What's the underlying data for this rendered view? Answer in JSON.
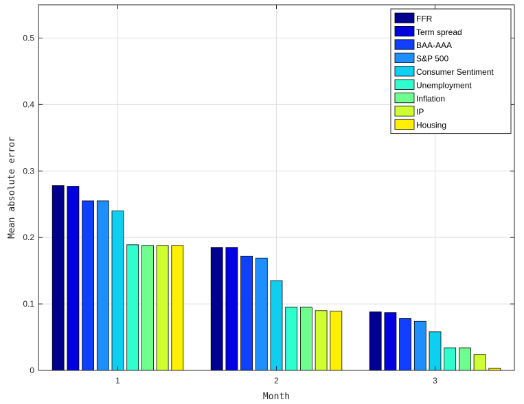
{
  "chart_data": {
    "type": "bar",
    "xlabel": "Month",
    "ylabel": "Mean absolute error",
    "categories": [
      "1",
      "2",
      "3"
    ],
    "ylim": [
      0,
      0.55
    ],
    "yticks": [
      0,
      0.1,
      0.2,
      0.3,
      0.4,
      0.5
    ],
    "ytick_labels": [
      "0",
      "0.1",
      "0.2",
      "0.3",
      "0.4",
      "0.5"
    ],
    "grid": true,
    "legend_position": "top-right",
    "series": [
      {
        "name": "FFR",
        "color": "#00008F",
        "values": [
          0.278,
          0.185,
          0.088
        ]
      },
      {
        "name": "Term spread",
        "color": "#0000DF",
        "values": [
          0.277,
          0.185,
          0.087
        ]
      },
      {
        "name": "BAA-AAA",
        "color": "#0F3FFF",
        "values": [
          0.255,
          0.172,
          0.078
        ]
      },
      {
        "name": "S&P 500",
        "color": "#1F8FFF",
        "values": [
          0.255,
          0.169,
          0.074
        ]
      },
      {
        "name": "Consumer Sentiment",
        "color": "#0FCFF0",
        "values": [
          0.24,
          0.135,
          0.058
        ]
      },
      {
        "name": "Unemployment",
        "color": "#2FFFCF",
        "values": [
          0.189,
          0.095,
          0.034
        ]
      },
      {
        "name": "Inflation",
        "color": "#6FFF8F",
        "values": [
          0.188,
          0.095,
          0.034
        ]
      },
      {
        "name": "IP",
        "color": "#CFFF2F",
        "values": [
          0.188,
          0.09,
          0.024
        ]
      },
      {
        "name": "Housing",
        "color": "#FFEF00",
        "values": [
          0.188,
          0.089,
          0.003
        ]
      }
    ]
  }
}
